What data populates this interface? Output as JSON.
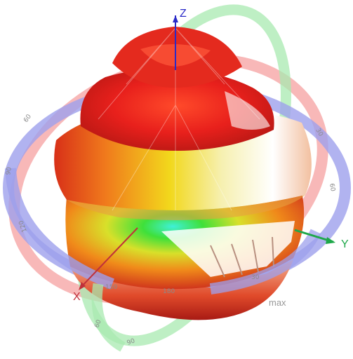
{
  "axes": {
    "z": {
      "label": "Z",
      "color": "#2a2ac8"
    },
    "y": {
      "label": "Y",
      "color": "#1fa84a"
    },
    "x": {
      "label": "X",
      "color": "#c0303a"
    }
  },
  "ring_colors": {
    "azimuth": "#9ea0ec",
    "elevation_red": "#f5a0a0",
    "elevation_green": "#a8eab0"
  },
  "ring_labels": {
    "blue": [
      "30",
      "60",
      "90",
      "120",
      "150",
      "180"
    ],
    "green": [
      "60",
      "90"
    ]
  },
  "max_label": "max",
  "pattern_colors": {
    "top": "#e6201c",
    "mid": "#f08a1a",
    "yellow": "#f2e11a",
    "green": "#3fe03a",
    "cyan": "#3ff0d8",
    "shadow": "#c8c8c8"
  }
}
